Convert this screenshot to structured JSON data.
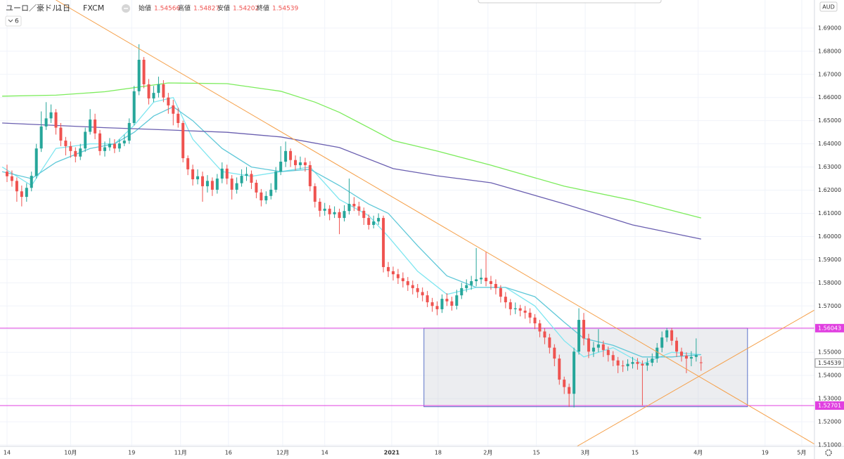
{
  "chart_data": {
    "type": "candlestick",
    "title": "ユーロ／豪ドル",
    "interval": "1日",
    "source": "FXCM",
    "currency": "AUD",
    "indicator_count": 6,
    "ohlc_labels": [
      "始値",
      "高値",
      "安値",
      "終値"
    ],
    "x": [
      0,
      1,
      2,
      3,
      4,
      5,
      6,
      7,
      8,
      9,
      10,
      11,
      12,
      13,
      14,
      15,
      16,
      17,
      18,
      19,
      20,
      21,
      22,
      23,
      24,
      25,
      26,
      27,
      28,
      29,
      30,
      31,
      32,
      33,
      34,
      35,
      36,
      37,
      38,
      39,
      40,
      41,
      42,
      43,
      44,
      45,
      46,
      47,
      48,
      49,
      50,
      51,
      52,
      53,
      54,
      55,
      56,
      57,
      58,
      59,
      60,
      61,
      62,
      63,
      64,
      65,
      66,
      67,
      68,
      69,
      70,
      71,
      72,
      73,
      74,
      75,
      76,
      77,
      78,
      79,
      80,
      81,
      82,
      83,
      84,
      85,
      86,
      87,
      88,
      89,
      90,
      91,
      92,
      93,
      94,
      95,
      96,
      97,
      98,
      99,
      100,
      101,
      102,
      103,
      104,
      105,
      106,
      107,
      108,
      109,
      110,
      111,
      112,
      113,
      114,
      115,
      116,
      117,
      118,
      119,
      120,
      121,
      122,
      123,
      124,
      125,
      126,
      127,
      128,
      129,
      130,
      131,
      132,
      133,
      134,
      135,
      136,
      137,
      138,
      139,
      140,
      141,
      142
    ],
    "open": [
      1.628,
      1.626,
      1.624,
      1.6195,
      1.6171,
      1.621,
      1.6262,
      1.638,
      1.6475,
      1.651,
      1.6536,
      1.647,
      1.6414,
      1.639,
      1.6369,
      1.6345,
      1.638,
      1.6452,
      1.6505,
      1.6445,
      1.6369,
      1.6385,
      1.64,
      1.638,
      1.6402,
      1.6414,
      1.649,
      1.6627,
      1.6763,
      1.6657,
      1.6596,
      1.662,
      1.6657,
      1.66,
      1.6566,
      1.653,
      1.649,
      1.6338,
      1.629,
      1.6247,
      1.626,
      1.6217,
      1.624,
      1.6202,
      1.625,
      1.6293,
      1.625,
      1.6202,
      1.623,
      1.6262,
      1.627,
      1.6232,
      1.619,
      1.6156,
      1.6175,
      1.6202,
      1.628,
      1.6323,
      1.6369,
      1.633,
      1.6308,
      1.632,
      1.6308,
      1.6217,
      1.615,
      1.6111,
      1.612,
      1.6096,
      1.6105,
      1.608,
      1.611,
      1.6141,
      1.613,
      1.6111,
      1.608,
      1.605,
      1.6065,
      1.608,
      1.5868,
      1.585,
      1.5837,
      1.582,
      1.5807,
      1.579,
      1.5777,
      1.576,
      1.5746,
      1.5716,
      1.57,
      1.5686,
      1.5731,
      1.572,
      1.5701,
      1.5746,
      1.5777,
      1.579,
      1.5807,
      1.5815,
      1.5822,
      1.5807,
      1.5795,
      1.5777,
      1.574,
      1.5716,
      1.5686,
      1.569,
      1.568,
      1.5671,
      1.565,
      1.5625,
      1.559,
      1.5564,
      1.552,
      1.5473,
      1.5382,
      1.535,
      1.5321,
      1.5503,
      1.564,
      1.556,
      1.5503,
      1.552,
      1.5534,
      1.551,
      1.5488,
      1.5465,
      1.5443,
      1.544,
      1.545,
      1.5458,
      1.545,
      1.5443,
      1.5455,
      1.5473,
      1.552,
      1.5564,
      1.5595,
      1.555,
      1.5503,
      1.5485,
      1.5473,
      1.548,
      1.54566
    ],
    "high": [
      1.631,
      1.6285,
      1.6255,
      1.622,
      1.623,
      1.628,
      1.64,
      1.654,
      1.658,
      1.657,
      1.655,
      1.649,
      1.643,
      1.641,
      1.6385,
      1.64,
      1.647,
      1.655,
      1.653,
      1.646,
      1.641,
      1.6425,
      1.642,
      1.642,
      1.644,
      1.651,
      1.665,
      1.683,
      1.6775,
      1.668,
      1.665,
      1.669,
      1.6675,
      1.662,
      1.659,
      1.6555,
      1.65,
      1.635,
      1.631,
      1.629,
      1.628,
      1.6265,
      1.6255,
      1.627,
      1.632,
      1.631,
      1.6265,
      1.6255,
      1.629,
      1.63,
      1.6285,
      1.6245,
      1.6205,
      1.6195,
      1.623,
      1.63,
      1.639,
      1.641,
      1.638,
      1.635,
      1.6345,
      1.634,
      1.6325,
      1.623,
      1.6165,
      1.6145,
      1.6135,
      1.613,
      1.612,
      1.6135,
      1.625,
      1.617,
      1.615,
      1.6125,
      1.6095,
      1.609,
      1.61,
      1.609,
      1.589,
      1.587,
      1.586,
      1.5845,
      1.5825,
      1.581,
      1.5795,
      1.578,
      1.5765,
      1.5735,
      1.572,
      1.575,
      1.5755,
      1.574,
      1.577,
      1.58,
      1.5815,
      1.583,
      1.595,
      1.586,
      1.5935,
      1.583,
      1.5815,
      1.579,
      1.576,
      1.573,
      1.5715,
      1.5705,
      1.57,
      1.569,
      1.5665,
      1.564,
      1.5605,
      1.558,
      1.5535,
      1.549,
      1.5395,
      1.5365,
      1.552,
      1.569,
      1.567,
      1.558,
      1.5545,
      1.56,
      1.555,
      1.5525,
      1.5505,
      1.548,
      1.5465,
      1.547,
      1.548,
      1.5475,
      1.5465,
      1.5475,
      1.5495,
      1.554,
      1.559,
      1.5605,
      1.5605,
      1.5565,
      1.552,
      1.55,
      1.5505,
      1.556,
      1.54827
    ],
    "low": [
      1.6235,
      1.6215,
      1.615,
      1.613,
      1.615,
      1.6195,
      1.625,
      1.6365,
      1.646,
      1.649,
      1.644,
      1.639,
      1.635,
      1.634,
      1.632,
      1.633,
      1.6365,
      1.644,
      1.642,
      1.635,
      1.6345,
      1.637,
      1.636,
      1.6365,
      1.639,
      1.64,
      1.648,
      1.661,
      1.664,
      1.657,
      1.658,
      1.66,
      1.658,
      1.653,
      1.648,
      1.647,
      1.632,
      1.6265,
      1.622,
      1.6225,
      1.615,
      1.619,
      1.6175,
      1.6185,
      1.623,
      1.6225,
      1.616,
      1.6185,
      1.6215,
      1.624,
      1.6205,
      1.6165,
      1.613,
      1.614,
      1.616,
      1.619,
      1.6265,
      1.63,
      1.63,
      1.6285,
      1.629,
      1.628,
      1.6195,
      1.6125,
      1.6085,
      1.609,
      1.607,
      1.608,
      1.601,
      1.6065,
      1.6095,
      1.611,
      1.609,
      1.605,
      1.603,
      1.6035,
      1.605,
      1.5845,
      1.5825,
      1.581,
      1.5795,
      1.578,
      1.5765,
      1.575,
      1.5735,
      1.572,
      1.5695,
      1.5675,
      1.566,
      1.567,
      1.57,
      1.568,
      1.5685,
      1.573,
      1.576,
      1.577,
      1.5785,
      1.5795,
      1.5785,
      1.577,
      1.575,
      1.5715,
      1.569,
      1.566,
      1.5665,
      1.5655,
      1.5645,
      1.5625,
      1.56,
      1.5565,
      1.5535,
      1.5495,
      1.544,
      1.536,
      1.532,
      1.5265,
      1.5262,
      1.549,
      1.553,
      1.5475,
      1.548,
      1.55,
      1.548,
      1.546,
      1.544,
      1.541,
      1.5415,
      1.542,
      1.543,
      1.5425,
      1.527,
      1.542,
      1.544,
      1.5455,
      1.55,
      1.5545,
      1.553,
      1.548,
      1.546,
      1.541,
      1.544,
      1.546,
      1.54202
    ],
    "close": [
      1.626,
      1.624,
      1.6195,
      1.6171,
      1.621,
      1.6262,
      1.638,
      1.6475,
      1.651,
      1.6536,
      1.647,
      1.6414,
      1.639,
      1.6369,
      1.6345,
      1.638,
      1.6452,
      1.6505,
      1.6445,
      1.6369,
      1.6385,
      1.64,
      1.638,
      1.6402,
      1.6414,
      1.649,
      1.6627,
      1.6763,
      1.6657,
      1.6596,
      1.662,
      1.6657,
      1.66,
      1.6566,
      1.653,
      1.649,
      1.6338,
      1.629,
      1.6247,
      1.626,
      1.6217,
      1.624,
      1.6202,
      1.625,
      1.6293,
      1.625,
      1.6202,
      1.623,
      1.6262,
      1.627,
      1.6232,
      1.619,
      1.6156,
      1.6175,
      1.6202,
      1.628,
      1.6323,
      1.6369,
      1.633,
      1.6308,
      1.632,
      1.6308,
      1.6217,
      1.615,
      1.6111,
      1.612,
      1.6096,
      1.6105,
      1.608,
      1.611,
      1.6141,
      1.613,
      1.6111,
      1.608,
      1.605,
      1.6065,
      1.608,
      1.5868,
      1.585,
      1.5837,
      1.582,
      1.5807,
      1.579,
      1.5777,
      1.576,
      1.5746,
      1.5716,
      1.57,
      1.5686,
      1.5731,
      1.572,
      1.5701,
      1.5746,
      1.5777,
      1.579,
      1.5807,
      1.5815,
      1.5822,
      1.5807,
      1.5795,
      1.5777,
      1.574,
      1.5716,
      1.5686,
      1.569,
      1.568,
      1.5671,
      1.565,
      1.5625,
      1.559,
      1.5564,
      1.552,
      1.5473,
      1.5382,
      1.535,
      1.5321,
      1.5503,
      1.564,
      1.556,
      1.5503,
      1.552,
      1.5534,
      1.551,
      1.5488,
      1.5465,
      1.5443,
      1.544,
      1.545,
      1.5458,
      1.545,
      1.5443,
      1.5455,
      1.5473,
      1.552,
      1.5564,
      1.5595,
      1.555,
      1.5503,
      1.5485,
      1.5473,
      1.548,
      1.5488,
      1.54539
    ],
    "up_color": "#26a69a",
    "down_color": "#ef5350",
    "moving_averages": [
      {
        "color": "#7ee6f0",
        "x": [
          -1,
          5,
          10,
          17,
          22,
          26,
          30,
          34,
          38,
          44,
          50,
          56,
          62,
          68,
          74,
          78,
          84,
          90,
          96,
          102,
          108,
          114,
          118,
          124,
          130,
          136,
          142
        ],
        "values": [
          1.63,
          1.622,
          1.638,
          1.64,
          1.64,
          1.648,
          1.658,
          1.66,
          1.642,
          1.628,
          1.626,
          1.628,
          1.63,
          1.616,
          1.609,
          1.6,
          1.585,
          1.575,
          1.578,
          1.578,
          1.57,
          1.555,
          1.548,
          1.552,
          1.545,
          1.55,
          1.549
        ]
      },
      {
        "color": "#5fc8d8",
        "x": [
          -1,
          5,
          10,
          17,
          22,
          26,
          30,
          34,
          38,
          44,
          50,
          56,
          62,
          68,
          74,
          78,
          84,
          90,
          96,
          102,
          108,
          114,
          118,
          124,
          130,
          136,
          142
        ],
        "values": [
          1.628,
          1.625,
          1.632,
          1.638,
          1.64,
          1.645,
          1.652,
          1.656,
          1.65,
          1.638,
          1.63,
          1.628,
          1.629,
          1.622,
          1.614,
          1.61,
          1.596,
          1.583,
          1.578,
          1.578,
          1.574,
          1.563,
          1.556,
          1.553,
          1.548,
          1.548,
          1.549
        ]
      },
      {
        "color": "#7cec5c",
        "x": [
          -1,
          10,
          20,
          33,
          45,
          56,
          63,
          68,
          74,
          79,
          88,
          99,
          114,
          128,
          142
        ],
        "values": [
          1.6606,
          1.661,
          1.6625,
          1.6663,
          1.666,
          1.6627,
          1.658,
          1.6536,
          1.647,
          1.6414,
          1.6369,
          1.6308,
          1.6217,
          1.6156,
          1.608
        ]
      },
      {
        "color": "#6a5fb0",
        "x": [
          -1,
          20,
          33,
          45,
          56,
          68,
          79,
          88,
          99,
          114,
          128,
          142
        ],
        "values": [
          1.649,
          1.647,
          1.646,
          1.645,
          1.643,
          1.6384,
          1.6293,
          1.6262,
          1.6232,
          1.6141,
          1.605,
          1.5989
        ]
      }
    ],
    "hlines": [
      1.56043,
      1.52701
    ],
    "hline_color": "#e040e0",
    "rectangle": {
      "x": [
        85.3,
        151.5
      ],
      "y": [
        1.5265,
        1.56043
      ],
      "color": "#5a73c8"
    },
    "trendlines": [
      {
        "x": [
          10,
          165.5
        ],
        "y": [
          1.7021,
          1.51
        ]
      },
      {
        "x": [
          116.6,
          165.5
        ],
        "y": [
          1.5094,
          1.5686
        ]
      }
    ],
    "trend_color": "#f5a04a",
    "xlim": [
      -1.44,
      165.2
    ],
    "ylim": [
      1.5094,
      1.7021
    ],
    "xticks": [
      {
        "value": 0,
        "label": "14"
      },
      {
        "value": 13,
        "label": "10月"
      },
      {
        "value": 25.5,
        "label": "19"
      },
      {
        "value": 35.5,
        "label": "11月"
      },
      {
        "value": 45.3,
        "label": "16"
      },
      {
        "value": 56.4,
        "label": "12月"
      },
      {
        "value": 65,
        "label": "14"
      },
      {
        "value": 78.7,
        "label": "2021"
      },
      {
        "value": 88.2,
        "label": "18"
      },
      {
        "value": 98.4,
        "label": "2月"
      },
      {
        "value": 108.3,
        "label": "15"
      },
      {
        "value": 118.3,
        "label": "3月"
      },
      {
        "value": 128.5,
        "label": "15"
      },
      {
        "value": 141.4,
        "label": "4月"
      },
      {
        "value": 155.1,
        "label": "19"
      },
      {
        "value": 162.6,
        "label": "5月"
      }
    ],
    "yticks": [
      {
        "value": 1.51,
        "label": "1.51000"
      },
      {
        "value": 1.52,
        "label": "1.52000"
      },
      {
        "value": 1.53,
        "label": "1.53000"
      },
      {
        "value": 1.54,
        "label": "1.54000"
      },
      {
        "value": 1.55,
        "label": "1.55000"
      },
      {
        "value": 1.56,
        "label": "1.56000"
      },
      {
        "value": 1.57,
        "label": "1.57000"
      },
      {
        "value": 1.58,
        "label": "1.58000"
      },
      {
        "value": 1.59,
        "label": "1.59000"
      },
      {
        "value": 1.6,
        "label": "1.60000"
      },
      {
        "value": 1.61,
        "label": "1.61000"
      },
      {
        "value": 1.62,
        "label": "1.62000"
      },
      {
        "value": 1.63,
        "label": "1.63000"
      },
      {
        "value": 1.64,
        "label": "1.64000"
      },
      {
        "value": 1.65,
        "label": "1.65000"
      },
      {
        "value": 1.66,
        "label": "1.66000"
      },
      {
        "value": 1.67,
        "label": "1.67000"
      },
      {
        "value": 1.68,
        "label": "1.68000"
      },
      {
        "value": 1.69,
        "label": "1.69000"
      }
    ],
    "grid": true
  }
}
